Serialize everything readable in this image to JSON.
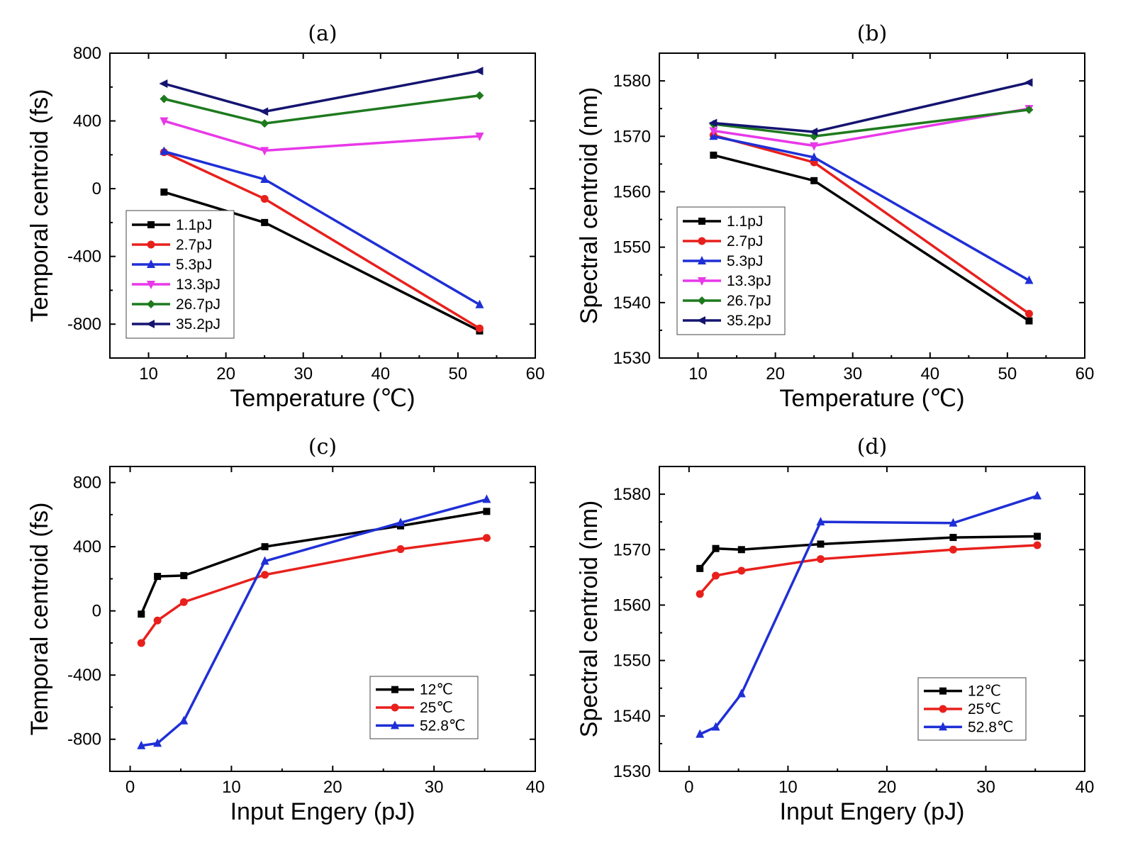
{
  "chart_data": [
    {
      "type": "line",
      "panel": "(a)",
      "title": "(a)",
      "xlabel": "Temperature (℃)",
      "ylabel": "Temporal centroid (fs)",
      "xlim": [
        5,
        60
      ],
      "ylim": [
        -1000,
        800
      ],
      "xticks": [
        10,
        20,
        30,
        40,
        50,
        60
      ],
      "yticks": [
        -800,
        -400,
        0,
        400,
        800
      ],
      "legend_position": "bottom-left",
      "x": [
        12,
        25,
        52.8
      ],
      "series": [
        {
          "name": "1.1pJ",
          "color": "#000000",
          "marker": "square",
          "values": [
            -20,
            -200,
            -840
          ]
        },
        {
          "name": "2.7pJ",
          "color": "#e8201c",
          "marker": "circle",
          "values": [
            215,
            -60,
            -825
          ]
        },
        {
          "name": "5.3pJ",
          "color": "#1f2fd6",
          "marker": "triangle-up",
          "values": [
            220,
            55,
            -685
          ]
        },
        {
          "name": "13.3pJ",
          "color": "#e838e8",
          "marker": "triangle-down",
          "values": [
            400,
            225,
            310
          ]
        },
        {
          "name": "26.7pJ",
          "color": "#1e7a1e",
          "marker": "diamond",
          "values": [
            530,
            385,
            550
          ]
        },
        {
          "name": "35.2pJ",
          "color": "#141470",
          "marker": "triangle-left",
          "values": [
            620,
            455,
            695
          ]
        }
      ]
    },
    {
      "type": "line",
      "panel": "(b)",
      "title": "(b)",
      "xlabel": "Temperature (℃)",
      "ylabel": "Spectral centroid (nm)",
      "xlim": [
        5,
        60
      ],
      "ylim": [
        1530,
        1585
      ],
      "xticks": [
        10,
        20,
        30,
        40,
        50,
        60
      ],
      "yticks": [
        1530,
        1540,
        1550,
        1560,
        1570,
        1580
      ],
      "legend_position": "bottom-left",
      "x": [
        12,
        25,
        52.8
      ],
      "series": [
        {
          "name": "1.1pJ",
          "color": "#000000",
          "marker": "square",
          "values": [
            1566.6,
            1562,
            1536.7
          ]
        },
        {
          "name": "2.7pJ",
          "color": "#e8201c",
          "marker": "circle",
          "values": [
            1570.2,
            1565.3,
            1538
          ]
        },
        {
          "name": "5.3pJ",
          "color": "#1f2fd6",
          "marker": "triangle-up",
          "values": [
            1570,
            1566.2,
            1544
          ]
        },
        {
          "name": "13.3pJ",
          "color": "#e838e8",
          "marker": "triangle-down",
          "values": [
            1571,
            1568.3,
            1575
          ]
        },
        {
          "name": "26.7pJ",
          "color": "#1e7a1e",
          "marker": "diamond",
          "values": [
            1572.2,
            1570,
            1574.8
          ]
        },
        {
          "name": "35.2pJ",
          "color": "#141470",
          "marker": "triangle-left",
          "values": [
            1572.4,
            1570.8,
            1579.7
          ]
        }
      ]
    },
    {
      "type": "line",
      "panel": "(c)",
      "title": "(c)",
      "xlabel": "Input Engery (pJ)",
      "ylabel": "Temporal centroid (fs)",
      "xlim": [
        -2,
        40
      ],
      "ylim": [
        -1000,
        900
      ],
      "xticks": [
        0,
        10,
        20,
        30,
        40
      ],
      "yticks": [
        -800,
        -400,
        0,
        400,
        800
      ],
      "legend_position": "bottom-right",
      "x": [
        1.1,
        2.7,
        5.3,
        13.3,
        26.7,
        35.2
      ],
      "series": [
        {
          "name": "12℃",
          "color": "#000000",
          "marker": "square",
          "values": [
            -20,
            215,
            220,
            400,
            530,
            620
          ]
        },
        {
          "name": "25℃",
          "color": "#e8201c",
          "marker": "circle",
          "values": [
            -200,
            -60,
            55,
            225,
            385,
            455
          ]
        },
        {
          "name": "52.8℃",
          "color": "#1f2fd6",
          "marker": "triangle-up",
          "values": [
            -840,
            -825,
            -685,
            310,
            550,
            695
          ]
        }
      ]
    },
    {
      "type": "line",
      "panel": "(d)",
      "title": "(d)",
      "xlabel": "Input Engery (pJ)",
      "ylabel": "Spectral centroid (nm)",
      "xlim": [
        -3,
        40
      ],
      "ylim": [
        1530,
        1585
      ],
      "xticks": [
        0,
        10,
        20,
        30,
        40
      ],
      "yticks": [
        1530,
        1540,
        1550,
        1560,
        1570,
        1580
      ],
      "legend_position": "bottom-right",
      "x": [
        1.1,
        2.7,
        5.3,
        13.3,
        26.7,
        35.2
      ],
      "series": [
        {
          "name": "12℃",
          "color": "#000000",
          "marker": "square",
          "values": [
            1566.6,
            1570.2,
            1570,
            1571,
            1572.2,
            1572.4
          ]
        },
        {
          "name": "25℃",
          "color": "#e8201c",
          "marker": "circle",
          "values": [
            1562,
            1565.3,
            1566.2,
            1568.3,
            1570,
            1570.8
          ]
        },
        {
          "name": "52.8℃",
          "color": "#1f2fd6",
          "marker": "triangle-up",
          "values": [
            1536.7,
            1538,
            1544,
            1575,
            1574.8,
            1579.7
          ]
        }
      ]
    }
  ]
}
